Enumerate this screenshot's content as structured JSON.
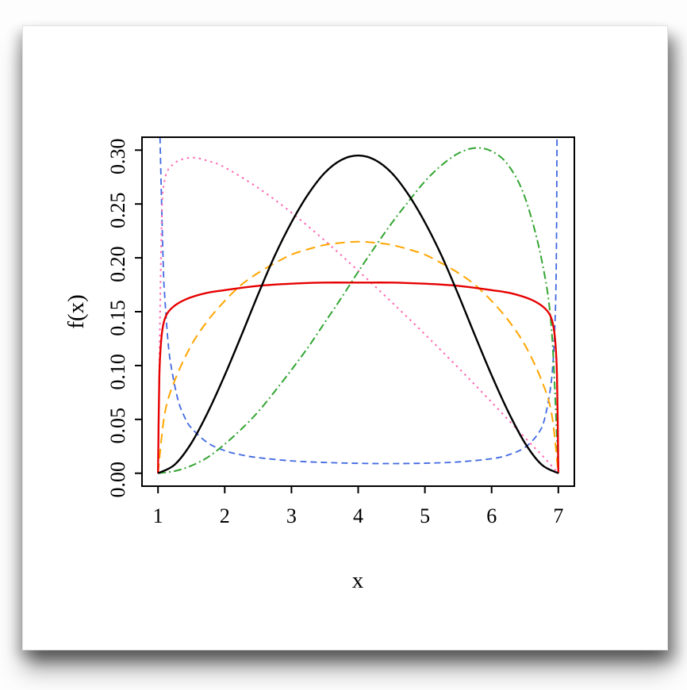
{
  "page": {
    "background_color": "#ffffff",
    "paper_color": "#ffffff"
  },
  "chart_data": {
    "type": "line",
    "title": "",
    "xlabel": "x",
    "ylabel": "f(x)",
    "xlim": [
      0.76,
      7.24
    ],
    "ylim": [
      -0.012,
      0.312
    ],
    "grid": false,
    "legend": "none",
    "axis_color": "#000000",
    "x_ticks": {
      "values": [
        1,
        2,
        3,
        4,
        5,
        6,
        7
      ],
      "labels": [
        "1",
        "2",
        "3",
        "4",
        "5",
        "6",
        "7"
      ]
    },
    "y_ticks": {
      "values": [
        0.0,
        0.05,
        0.1,
        0.15,
        0.2,
        0.25,
        0.3
      ],
      "labels": [
        "0.00",
        "0.05",
        "0.10",
        "0.15",
        "0.20",
        "0.25",
        "0.30"
      ]
    },
    "series": [
      {
        "name": "u-shaped-blue-dashed",
        "style": "dashed",
        "color": "#4169e1",
        "dash": "8,5",
        "width": 1.8,
        "x": [
          1.03,
          1.05,
          1.08,
          1.1,
          1.15,
          1.2,
          1.3,
          1.4,
          1.5,
          1.75,
          2,
          2.25,
          2.5,
          3,
          3.5,
          4,
          4.5,
          5,
          5.5,
          6,
          6.25,
          6.5,
          6.7,
          6.8,
          6.9,
          6.95,
          6.97,
          6.98
        ],
        "y": [
          0.312,
          0.26,
          0.19,
          0.165,
          0.122,
          0.098,
          0.068,
          0.052,
          0.042,
          0.028,
          0.021,
          0.017,
          0.0145,
          0.0115,
          0.01,
          0.0092,
          0.009,
          0.0093,
          0.0105,
          0.0135,
          0.017,
          0.024,
          0.037,
          0.052,
          0.088,
          0.14,
          0.2,
          0.312
        ]
      },
      {
        "name": "left-skewed-pink-dotted",
        "style": "dotted",
        "color": "#ff69b4",
        "dash": "2.5,5",
        "width": 2,
        "x": [
          1,
          1.05,
          1.1,
          1.25,
          1.5,
          1.75,
          2,
          2.5,
          3,
          3.5,
          4,
          4.5,
          5,
          5.5,
          6,
          6.5,
          6.75,
          7
        ],
        "y": [
          0,
          0.22,
          0.272,
          0.288,
          0.293,
          0.29,
          0.284,
          0.265,
          0.242,
          0.216,
          0.188,
          0.159,
          0.129,
          0.098,
          0.066,
          0.033,
          0.017,
          0
        ]
      },
      {
        "name": "right-skewed-green-dashdot",
        "style": "dashdot",
        "color": "#33a532",
        "dash": "10,4,2,4",
        "width": 2,
        "x": [
          1,
          1.25,
          1.5,
          1.75,
          2,
          2.25,
          2.5,
          2.75,
          3,
          3.25,
          3.5,
          3.75,
          4,
          4.25,
          4.5,
          4.75,
          5,
          5.25,
          5.5,
          5.75,
          6,
          6.25,
          6.5,
          6.75,
          6.9,
          7
        ],
        "y": [
          0,
          0.002,
          0.007,
          0.015,
          0.027,
          0.041,
          0.057,
          0.076,
          0.096,
          0.117,
          0.14,
          0.163,
          0.187,
          0.21,
          0.232,
          0.252,
          0.271,
          0.286,
          0.297,
          0.302,
          0.299,
          0.286,
          0.256,
          0.198,
          0.132,
          0
        ]
      },
      {
        "name": "wide-dome-orange-dashed",
        "style": "dashed",
        "color": "#ffa500",
        "dash": "12,7",
        "width": 2,
        "x": [
          1,
          1.1,
          1.25,
          1.5,
          1.75,
          2,
          2.25,
          2.5,
          2.75,
          3,
          3.25,
          3.5,
          3.75,
          4,
          4.25,
          4.5,
          4.75,
          5,
          5.25,
          5.5,
          5.75,
          6,
          6.25,
          6.5,
          6.75,
          6.9,
          7
        ],
        "y": [
          0,
          0.055,
          0.086,
          0.119,
          0.142,
          0.16,
          0.175,
          0.186,
          0.195,
          0.203,
          0.208,
          0.212,
          0.214,
          0.215,
          0.214,
          0.212,
          0.208,
          0.203,
          0.195,
          0.186,
          0.175,
          0.16,
          0.142,
          0.119,
          0.086,
          0.055,
          0
        ]
      },
      {
        "name": "flat-plateau-red-solid",
        "style": "solid",
        "color": "#e60000",
        "dash": "",
        "width": 2.4,
        "x": [
          1,
          1.02,
          1.05,
          1.1,
          1.2,
          1.4,
          1.7,
          2,
          2.5,
          3,
          3.5,
          4,
          4.5,
          5,
          5.5,
          6,
          6.3,
          6.6,
          6.8,
          6.9,
          6.95,
          6.98,
          7
        ],
        "y": [
          0,
          0.09,
          0.125,
          0.143,
          0.153,
          0.161,
          0.167,
          0.17,
          0.174,
          0.176,
          0.177,
          0.177,
          0.177,
          0.176,
          0.174,
          0.17,
          0.167,
          0.161,
          0.153,
          0.143,
          0.125,
          0.09,
          0
        ]
      },
      {
        "name": "symmetric-bell-black-solid",
        "style": "solid",
        "color": "#000000",
        "dash": "",
        "width": 2.4,
        "x": [
          1,
          1.25,
          1.5,
          1.75,
          2,
          2.25,
          2.5,
          2.75,
          3,
          3.25,
          3.5,
          3.75,
          4,
          4.25,
          4.5,
          4.75,
          5,
          5.25,
          5.5,
          5.75,
          6,
          6.25,
          6.5,
          6.75,
          7
        ],
        "y": [
          0,
          0.008,
          0.028,
          0.057,
          0.091,
          0.128,
          0.166,
          0.202,
          0.233,
          0.259,
          0.279,
          0.291,
          0.295,
          0.291,
          0.279,
          0.259,
          0.233,
          0.202,
          0.166,
          0.128,
          0.091,
          0.057,
          0.028,
          0.008,
          0
        ]
      }
    ]
  }
}
